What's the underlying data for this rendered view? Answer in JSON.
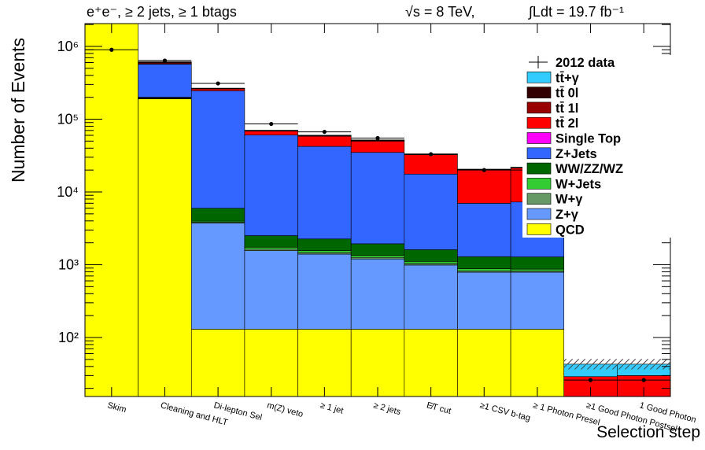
{
  "header": {
    "channel": "e⁺e⁻, ≥ 2 jets, ≥ 1 btags",
    "energy": "√s = 8 TeV,",
    "lumi": "∫Ldt = 19.7 fb⁻¹"
  },
  "chart_data": {
    "type": "bar",
    "stacked": true,
    "ylog": true,
    "title": "",
    "xlabel": "Selection step",
    "ylabel": "Number of Events",
    "ylim": [
      15,
      2500000
    ],
    "grid": false,
    "legend_position": "top-right",
    "categories": [
      "Skim",
      "Cleaning and HLT",
      "Di-lepton Sel",
      "m(Z) veto",
      "≥ 1 jet",
      "≥ 2 jets",
      "E̸T cut",
      "≥1 CSV b-tag",
      "≥ 1 Photon Presel",
      "≥1 Good Photon Postsel",
      "1 Good Photon"
    ],
    "y_ticks": [
      {
        "value": 100,
        "label": "10²"
      },
      {
        "value": 1000,
        "label": "10³"
      },
      {
        "value": 10000,
        "label": "10⁴"
      },
      {
        "value": 100000,
        "label": "10⁵"
      },
      {
        "value": 1000000,
        "label": "10⁶"
      }
    ],
    "series": [
      {
        "name": "QCD",
        "color": "#ffff00",
        "values": [
          2500000,
          190000,
          130,
          130,
          130,
          130,
          130,
          130,
          130,
          15,
          15
        ]
      },
      {
        "name": "Z+γ",
        "color": "#6699ff",
        "values": [
          0,
          3000,
          3600,
          1430,
          1270,
          1070,
          860,
          660,
          660,
          0,
          0
        ]
      },
      {
        "name": "W+γ",
        "color": "#669966",
        "values": [
          0,
          1000,
          100,
          80,
          70,
          60,
          50,
          35,
          30,
          0,
          0
        ]
      },
      {
        "name": "W+Jets",
        "color": "#33cc33",
        "values": [
          0,
          3000,
          140,
          100,
          90,
          80,
          70,
          55,
          50,
          0,
          0
        ]
      },
      {
        "name": "WW/ZZ/WZ",
        "color": "#006600",
        "values": [
          0,
          3000,
          2000,
          770,
          700,
          600,
          500,
          410,
          410,
          0,
          0
        ]
      },
      {
        "name": "Z+Jets",
        "color": "#3366ff",
        "values": [
          0,
          370000,
          240000,
          58000,
          40000,
          33000,
          16000,
          5700,
          6000,
          0,
          0
        ]
      },
      {
        "name": "Single Top",
        "color": "#ff00ff",
        "values": [
          0,
          0,
          0,
          0,
          0,
          0,
          0,
          0,
          0,
          0,
          0
        ]
      },
      {
        "name": "tt̄ 2l",
        "color": "#ff0000",
        "values": [
          0,
          5000,
          15000,
          8000,
          16000,
          15000,
          15000,
          13000,
          14000,
          14,
          15
        ]
      },
      {
        "name": "tt̄ 1l",
        "color": "#990000",
        "values": [
          0,
          20000,
          3000,
          1000,
          1000,
          1000,
          400,
          300,
          300,
          0,
          0
        ]
      },
      {
        "name": "tt̄ 0l",
        "color": "#330000",
        "values": [
          0,
          20000,
          3000,
          1000,
          1000,
          1000,
          400,
          300,
          300,
          0,
          0
        ]
      },
      {
        "name": "tt̄+γ",
        "color": "#33ccff",
        "values": [
          0,
          0,
          0,
          0,
          0,
          0,
          0,
          0,
          0,
          14,
          13
        ]
      }
    ],
    "data": {
      "name": "2012 data",
      "values": [
        900000,
        640000,
        310000,
        86000,
        67000,
        55000,
        33000,
        20000,
        20000,
        26,
        26
      ]
    },
    "legend_order": [
      "2012 data",
      "tt̄+γ",
      "tt̄ 0l",
      "tt̄ 1l",
      "tt̄ 2l",
      "Single Top",
      "Z+Jets",
      "WW/ZZ/WZ",
      "W+Jets",
      "W+γ",
      "Z+γ",
      "QCD"
    ]
  }
}
